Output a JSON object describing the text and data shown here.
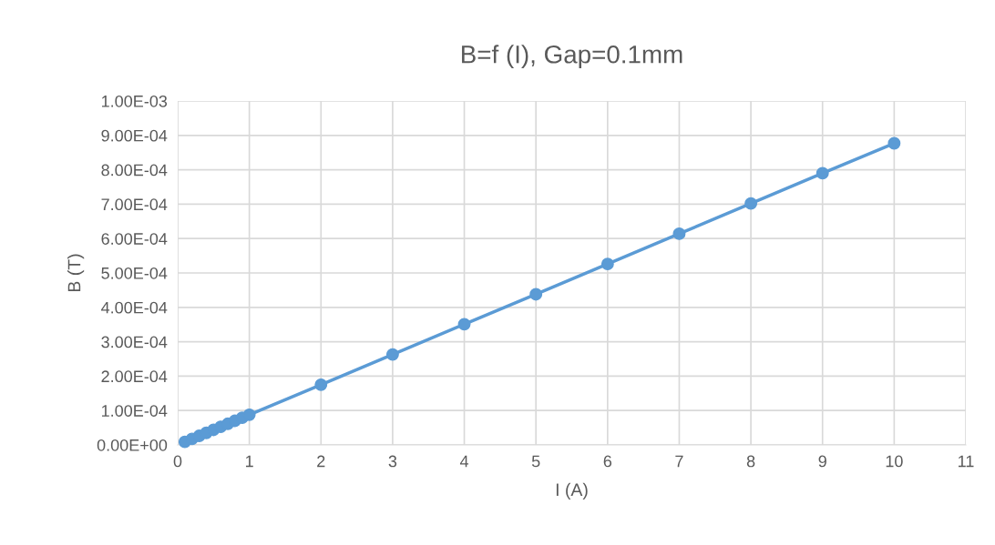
{
  "chart_data": {
    "type": "line",
    "title": "B=f (I), Gap=0.1mm",
    "xlabel": "I (A)",
    "ylabel": "B (T)",
    "x": [
      0.1,
      0.2,
      0.3,
      0.4,
      0.5,
      0.6,
      0.7,
      0.8,
      0.9,
      1,
      2,
      3,
      4,
      5,
      6,
      7,
      8,
      9,
      10
    ],
    "series": [
      {
        "color": "#5b9bd5",
        "values": [
          8.8e-06,
          1.75e-05,
          2.63e-05,
          3.5e-05,
          4.38e-05,
          5.26e-05,
          6.14e-05,
          7.02e-05,
          7.89e-05,
          8.77e-05,
          0.000175,
          0.000263,
          0.000351,
          0.000438,
          0.000526,
          0.000614,
          0.000702,
          0.00079,
          0.000877
        ]
      }
    ],
    "xlim": [
      0,
      11
    ],
    "xticks": [
      0,
      1,
      2,
      3,
      4,
      5,
      6,
      7,
      8,
      9,
      10,
      11
    ],
    "ylim": [
      0,
      0.001
    ],
    "yticks": [
      {
        "value": 0,
        "label": "0.00E+00"
      },
      {
        "value": 0.0001,
        "label": "1.00E-04"
      },
      {
        "value": 0.0002,
        "label": "2.00E-04"
      },
      {
        "value": 0.0003,
        "label": "3.00E-04"
      },
      {
        "value": 0.0004,
        "label": "4.00E-04"
      },
      {
        "value": 0.0005,
        "label": "5.00E-04"
      },
      {
        "value": 0.0006,
        "label": "6.00E-04"
      },
      {
        "value": 0.0007,
        "label": "7.00E-04"
      },
      {
        "value": 0.0008,
        "label": "8.00E-04"
      },
      {
        "value": 0.0009,
        "label": "9.00E-04"
      },
      {
        "value": 0.001,
        "label": "1.00E-03"
      }
    ],
    "grid": true,
    "marker": "circle",
    "line_style": "solid"
  }
}
